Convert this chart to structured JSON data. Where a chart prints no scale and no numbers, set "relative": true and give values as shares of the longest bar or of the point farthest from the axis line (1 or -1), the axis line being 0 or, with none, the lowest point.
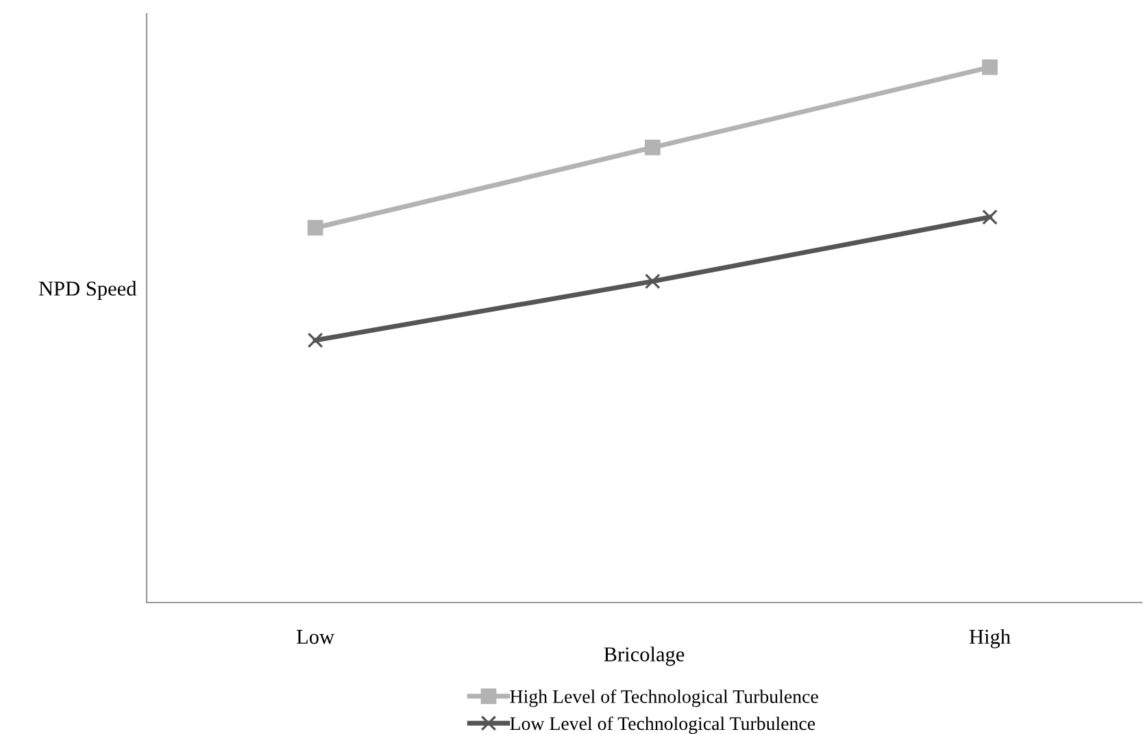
{
  "chart_data": {
    "type": "line",
    "relative": true,
    "xlabel": "Bricolage",
    "ylabel": "NPD Speed",
    "categories": [
      "Low",
      null,
      "High"
    ],
    "series": [
      {
        "name": "High Level of Technological Turbulence",
        "color": "#b3b3b3",
        "marker": "square",
        "values": [
          0.7,
          0.85,
          1
        ]
      },
      {
        "name": "Low Level of Technological Turbulence",
        "color": "#555555",
        "marker": "cross",
        "values": [
          0.49,
          0.6,
          0.72
        ]
      }
    ],
    "legend": "bottom",
    "grid": false,
    "line_style": "solid"
  }
}
